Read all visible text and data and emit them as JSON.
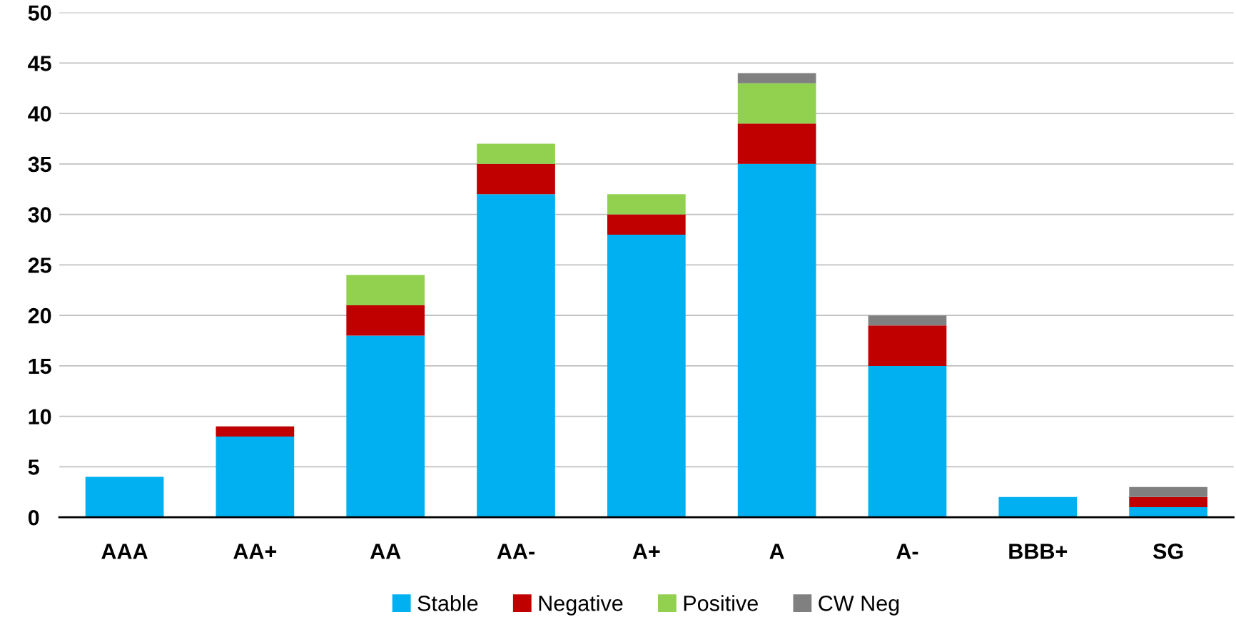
{
  "chart_data": {
    "type": "bar",
    "stacked": true,
    "categories": [
      "AAA",
      "AA+",
      "AA",
      "AA-",
      "A+",
      "A",
      "A-",
      "BBB+",
      "SG"
    ],
    "series": [
      {
        "name": "Stable",
        "color": "#00b0f0",
        "values": [
          4,
          8,
          18,
          32,
          28,
          35,
          15,
          2,
          1
        ]
      },
      {
        "name": "Negative",
        "color": "#c00000",
        "values": [
          0,
          1,
          3,
          3,
          2,
          4,
          4,
          0,
          1
        ]
      },
      {
        "name": "Positive",
        "color": "#92d050",
        "values": [
          0,
          0,
          3,
          2,
          2,
          4,
          0,
          0,
          0
        ]
      },
      {
        "name": "CW Neg",
        "color": "#808080",
        "values": [
          0,
          0,
          0,
          0,
          0,
          1,
          1,
          0,
          1
        ]
      }
    ],
    "ylim": [
      0,
      50
    ],
    "yticks": [
      0,
      5,
      10,
      15,
      20,
      25,
      30,
      35,
      40,
      45,
      50
    ],
    "grid": "y",
    "legend": "bottom"
  }
}
